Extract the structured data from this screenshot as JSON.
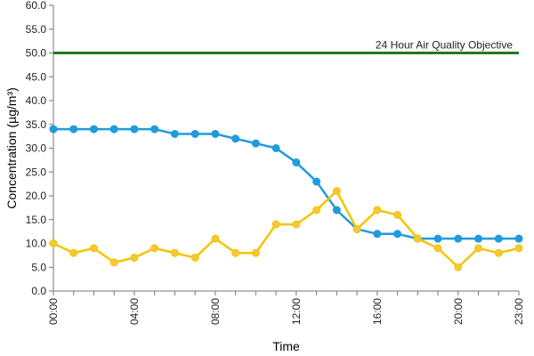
{
  "chart_data": {
    "type": "line",
    "title": "",
    "xlabel": "Time",
    "ylabel": "Concentration (µg/m³)",
    "ylim": [
      0,
      60
    ],
    "yticks": [
      "0.0",
      "5.0",
      "10.0",
      "15.0",
      "20.0",
      "25.0",
      "30.0",
      "35.0",
      "40.0",
      "45.0",
      "50.0",
      "55.0",
      "60.0"
    ],
    "y_tick_values": [
      0,
      5,
      10,
      15,
      20,
      25,
      30,
      35,
      40,
      45,
      50,
      55,
      60
    ],
    "x_hours": [
      0,
      1,
      2,
      3,
      4,
      5,
      6,
      7,
      8,
      9,
      10,
      11,
      12,
      13,
      14,
      15,
      16,
      17,
      18,
      19,
      20,
      21,
      22,
      23
    ],
    "x_tick_labels": [
      "00:00",
      "04:00",
      "08:00",
      "12:00",
      "16:00",
      "20:00",
      "23:00"
    ],
    "x_tick_hours": [
      0,
      4,
      8,
      12,
      16,
      20,
      23
    ],
    "grid": false,
    "legend": "none",
    "reference_line": {
      "label": "24 Hour Air Quality Objective",
      "value": 50,
      "color": "#1e7a1e"
    },
    "series": [
      {
        "color": "#1f9bde",
        "marker_color": "#1f9bde",
        "values": [
          34,
          34,
          34,
          34,
          34,
          34,
          33,
          33,
          33,
          32,
          31,
          30,
          27,
          23,
          17,
          13,
          12,
          12,
          11,
          11,
          11,
          11,
          11,
          11
        ]
      },
      {
        "color": "#f5c400",
        "marker_color": "#f5c83a",
        "values": [
          10,
          8,
          9,
          6,
          7,
          9,
          8,
          7,
          11,
          8,
          8,
          14,
          14,
          17,
          21,
          13,
          17,
          16,
          11,
          9,
          5,
          9,
          8,
          9
        ]
      }
    ]
  }
}
